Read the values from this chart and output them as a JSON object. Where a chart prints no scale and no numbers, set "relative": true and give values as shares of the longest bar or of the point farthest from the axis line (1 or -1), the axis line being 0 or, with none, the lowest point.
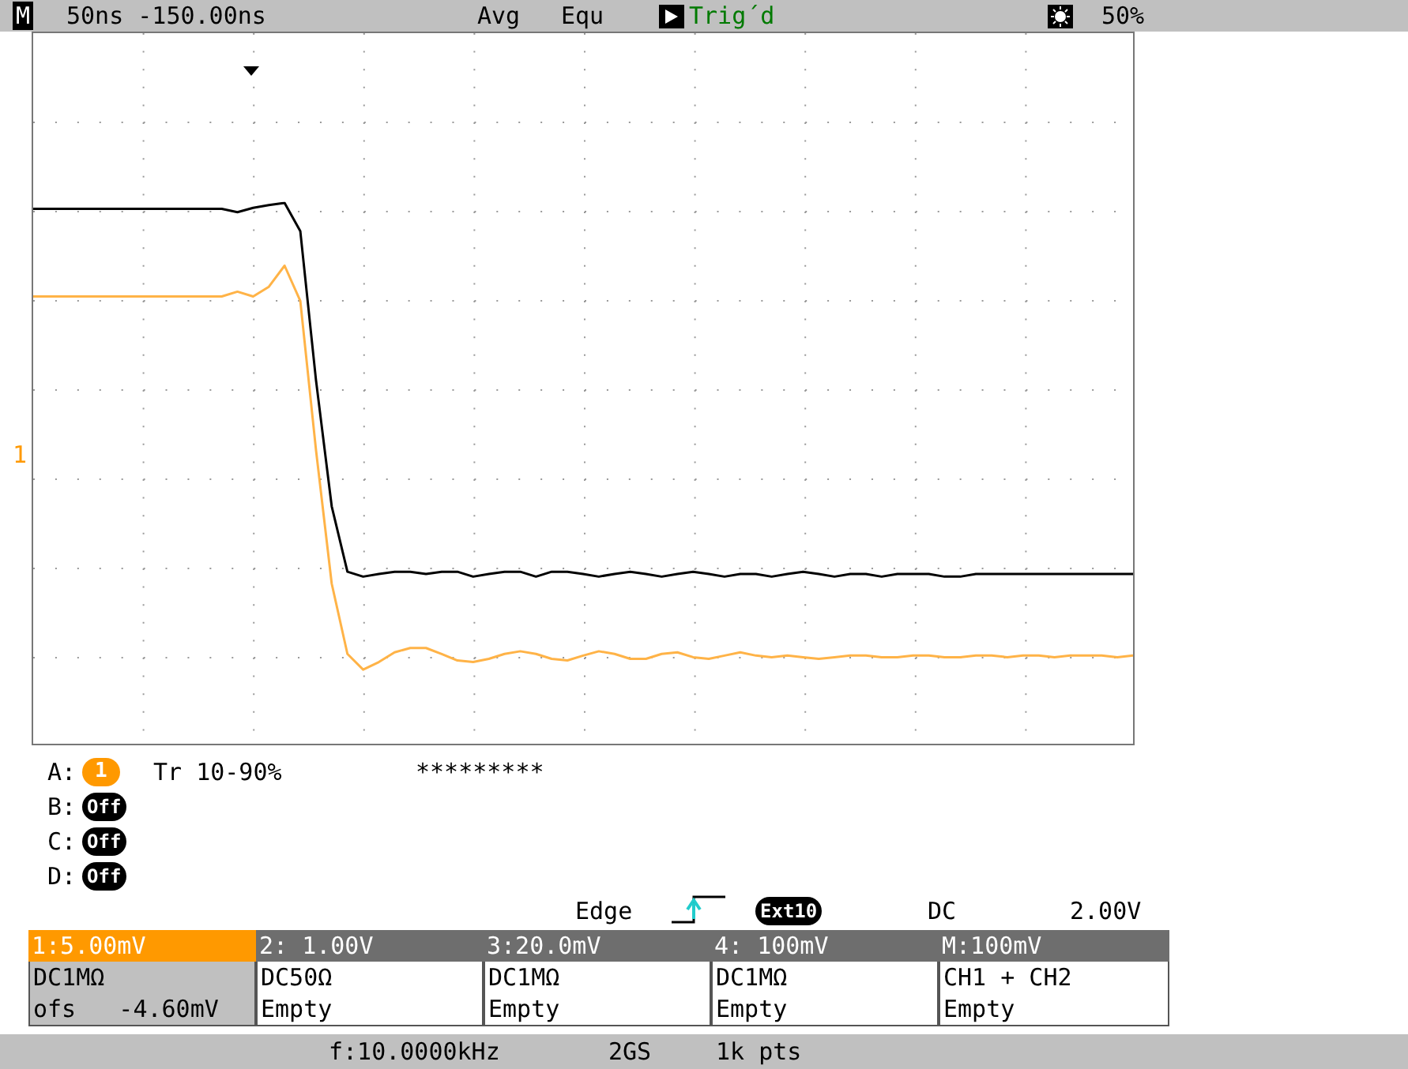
{
  "chart_data": {
    "type": "line",
    "relative": true,
    "grid": true,
    "categories": [
      null,
      null,
      null,
      null,
      null,
      null,
      null,
      null,
      null,
      null,
      null,
      null,
      null,
      null,
      null,
      null,
      null,
      null,
      null,
      null,
      null,
      null,
      null,
      null,
      null,
      null,
      null,
      null,
      null,
      null,
      null,
      null,
      null,
      null,
      null,
      null,
      null,
      null,
      null,
      null,
      null,
      null,
      null,
      null,
      null,
      null,
      null,
      null,
      null,
      null,
      null,
      null,
      null,
      null,
      null,
      null,
      null,
      null,
      null,
      null,
      null,
      null,
      null,
      null,
      null,
      null,
      null,
      null,
      null,
      null,
      null
    ],
    "series": [
      {
        "color": "#000000",
        "values": [
          0.989,
          0.989,
          0.989,
          0.989,
          0.989,
          0.989,
          0.989,
          0.989,
          0.989,
          0.989,
          0.989,
          0.989,
          0.989,
          0.983,
          0.991,
          0.996,
          1.0,
          0.948,
          0.672,
          0.439,
          0.318,
          0.309,
          0.314,
          0.318,
          0.318,
          0.314,
          0.318,
          0.318,
          0.309,
          0.314,
          0.318,
          0.318,
          0.309,
          0.318,
          0.318,
          0.314,
          0.309,
          0.314,
          0.318,
          0.314,
          0.309,
          0.314,
          0.318,
          0.314,
          0.309,
          0.314,
          0.314,
          0.309,
          0.314,
          0.318,
          0.314,
          0.309,
          0.314,
          0.314,
          0.309,
          0.314,
          0.314,
          0.314,
          0.309,
          0.309,
          0.314,
          0.314,
          0.314,
          0.314,
          0.314,
          0.314,
          0.314,
          0.314,
          0.314,
          0.314,
          0.314
        ]
      },
      {
        "color": "#ffb347",
        "values": [
          0.827,
          0.827,
          0.827,
          0.827,
          0.827,
          0.827,
          0.827,
          0.827,
          0.827,
          0.827,
          0.827,
          0.827,
          0.827,
          0.836,
          0.827,
          0.845,
          0.884,
          0.819,
          0.543,
          0.296,
          0.166,
          0.137,
          0.151,
          0.169,
          0.177,
          0.177,
          0.166,
          0.154,
          0.151,
          0.157,
          0.166,
          0.171,
          0.166,
          0.157,
          0.154,
          0.163,
          0.171,
          0.166,
          0.157,
          0.157,
          0.166,
          0.169,
          0.16,
          0.157,
          0.163,
          0.169,
          0.163,
          0.16,
          0.163,
          0.16,
          0.157,
          0.16,
          0.163,
          0.163,
          0.16,
          0.16,
          0.163,
          0.163,
          0.16,
          0.16,
          0.163,
          0.163,
          0.16,
          0.163,
          0.163,
          0.16,
          0.163,
          0.163,
          0.163,
          0.16,
          0.163
        ]
      }
    ],
    "annotations": [
      "M",
      "50ns -150.00ns",
      "Avg",
      "Equ",
      "Trig´d",
      "50%",
      "1",
      "A:",
      "1",
      "Tr 10-90%",
      "*********",
      "B:",
      "Off",
      "C:",
      "Off",
      "D:",
      "Off",
      "Edge",
      "Ext10",
      "DC",
      "2.00V",
      "1:5.00mV",
      "2: 1.00V",
      "3:20.0mV",
      "4: 100mV",
      "M:100mV",
      "DC1MΩ",
      "DC50Ω",
      "DC1MΩ",
      "DC1MΩ",
      "CH1 + CH2",
      "ofs   -4.60mV",
      "Empty",
      "Empty",
      "Empty",
      "Empty",
      "f:10.0000kHz",
      "2GS",
      "1k pts"
    ]
  }
}
